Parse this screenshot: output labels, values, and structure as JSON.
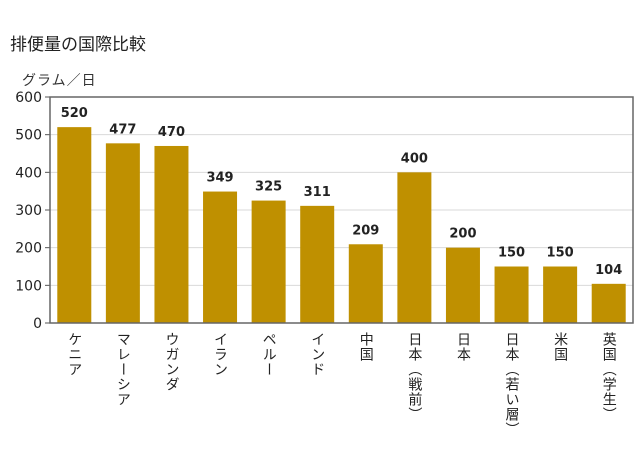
{
  "chart_data": {
    "type": "bar",
    "title": "排便量の国際比較",
    "ylabel": "グラム／日",
    "xlabel": "",
    "ylim": [
      0,
      600
    ],
    "yticks": [
      0,
      100,
      200,
      300,
      400,
      500,
      600
    ],
    "categories": [
      "ケニア",
      "マレーシア",
      "ウガンダ",
      "イラン",
      "ペルー",
      "インド",
      "中国",
      "日本（戦前）",
      "日本",
      "日本（若い層）",
      "米国",
      "英国（学生）"
    ],
    "values": [
      520,
      477,
      470,
      349,
      325,
      311,
      209,
      400,
      200,
      150,
      150,
      104
    ],
    "bar_color": "#bf9000",
    "grid": true,
    "legend": "none"
  }
}
